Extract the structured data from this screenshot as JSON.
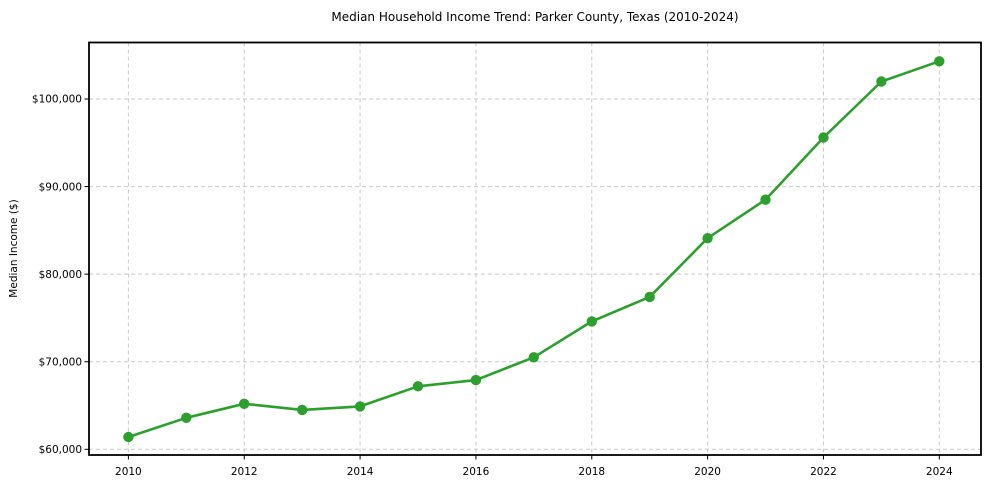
{
  "chart_data": {
    "type": "line",
    "title": "Median Household Income Trend: Parker County, Texas (2010-2024)",
    "xlabel": "",
    "ylabel": "Median Income ($)",
    "x": [
      2010,
      2011,
      2012,
      2013,
      2014,
      2015,
      2016,
      2017,
      2018,
      2019,
      2020,
      2021,
      2022,
      2023,
      2024
    ],
    "values": [
      61400,
      63600,
      65200,
      64500,
      64900,
      67200,
      67900,
      70500,
      74600,
      77400,
      84100,
      88500,
      95600,
      102000,
      104300
    ],
    "x_ticks": [
      2010,
      2012,
      2014,
      2016,
      2018,
      2020,
      2022,
      2024
    ],
    "x_tick_labels": [
      "2010",
      "2012",
      "2014",
      "2016",
      "2018",
      "2020",
      "2022",
      "2024"
    ],
    "y_ticks": [
      60000,
      70000,
      80000,
      90000,
      100000
    ],
    "y_tick_labels": [
      "$60,000",
      "$70,000",
      "$80,000",
      "$90,000",
      "$100,000"
    ],
    "xlim": [
      2009.32,
      2024.72
    ],
    "ylim": [
      59350,
      106450
    ],
    "grid": true,
    "grid_style": "dashed",
    "grid_color": "#c9c9c9",
    "line_color": "#2ca02c",
    "marker": "circle",
    "marker_color": "#2ca02c",
    "frame_color": "#000000",
    "legend": "none"
  }
}
